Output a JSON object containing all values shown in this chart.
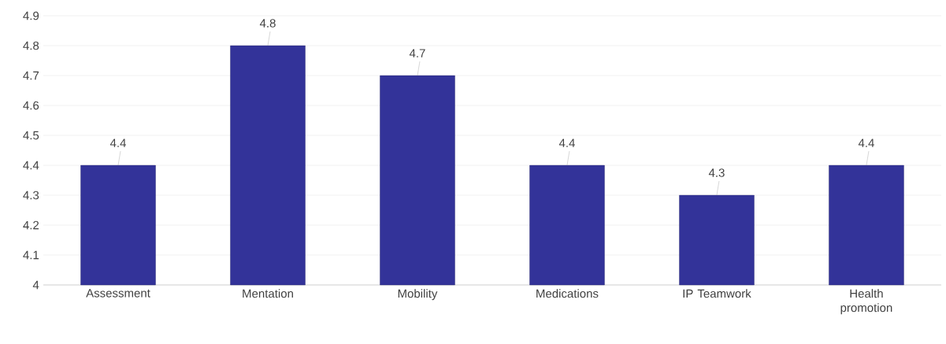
{
  "chart_data": {
    "type": "bar",
    "categories": [
      "Assessment",
      "Mentation",
      "Mobility",
      "Medications",
      "IP Teamwork",
      "Health promotion"
    ],
    "values": [
      4.4,
      4.8,
      4.7,
      4.4,
      4.3,
      4.4
    ],
    "color": "#333399",
    "ylim": [
      4,
      4.9
    ],
    "yticks": [
      4,
      4.1,
      4.2,
      4.3,
      4.4,
      4.5,
      4.6,
      4.7,
      4.8,
      4.9
    ],
    "grid": "y",
    "data_labels": true
  }
}
